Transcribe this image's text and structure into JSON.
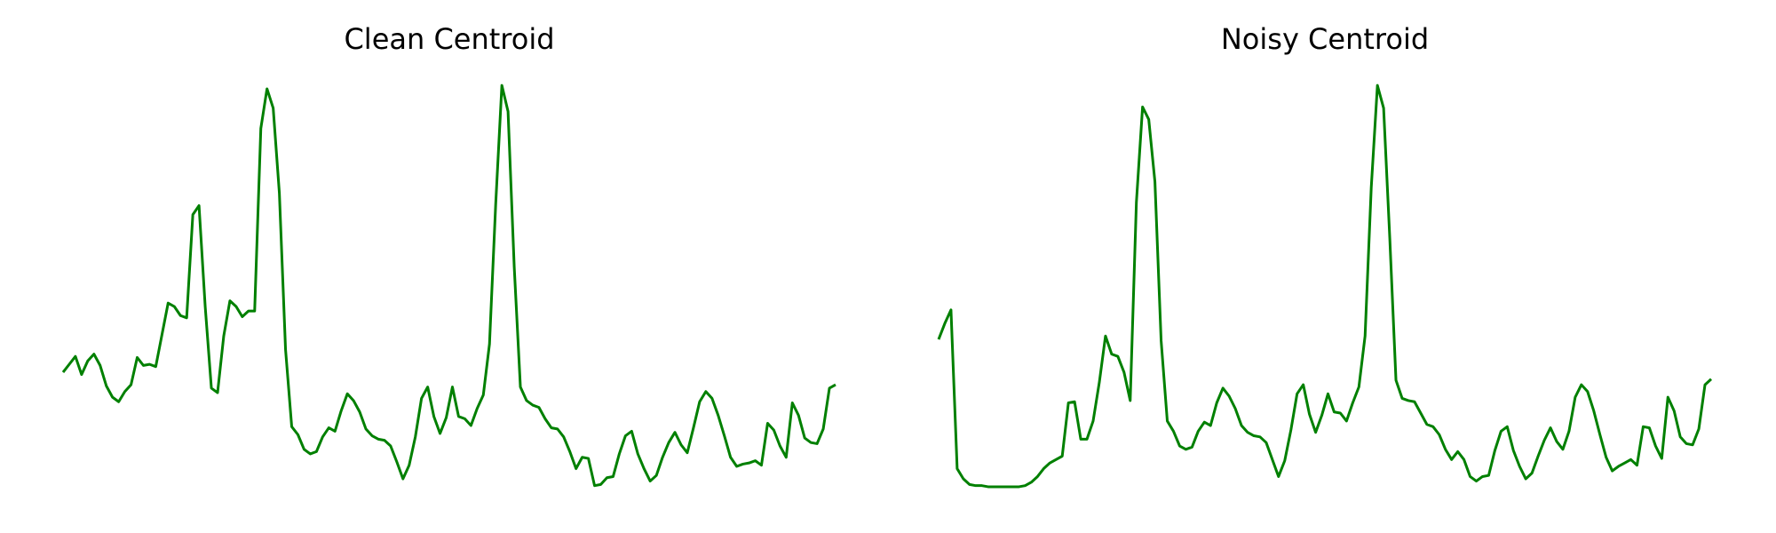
{
  "chart_data": [
    {
      "type": "line",
      "title": "Clean Centroid",
      "color": "#008000",
      "ylim": [
        0,
        380
      ],
      "values": [
        112,
        119,
        126,
        110,
        122,
        128,
        118,
        100,
        90,
        86,
        95,
        101,
        125,
        118,
        119,
        117,
        145,
        173,
        170,
        162,
        160,
        251,
        259,
        170,
        98,
        94,
        144,
        175,
        170,
        161,
        166,
        166,
        327,
        362,
        345,
        270,
        132,
        64,
        57,
        44,
        40,
        42,
        55,
        63,
        60,
        78,
        93,
        87,
        77,
        62,
        56,
        53,
        52,
        47,
        33,
        18,
        30,
        55,
        89,
        99,
        73,
        58,
        72,
        99,
        73,
        71,
        65,
        80,
        92,
        137,
        260,
        365,
        342,
        205,
        99,
        87,
        83,
        81,
        71,
        63,
        62,
        55,
        42,
        27,
        37,
        36,
        12,
        13,
        19,
        20,
        40,
        56,
        60,
        40,
        27,
        16,
        21,
        37,
        50,
        59,
        48,
        41,
        63,
        86,
        95,
        89,
        74,
        56,
        37,
        29,
        31,
        32,
        34,
        30,
        67,
        61,
        47,
        37,
        85,
        74,
        54,
        50,
        49,
        62,
        98,
        101
      ]
    },
    {
      "type": "line",
      "title": "Noisy Centroid",
      "color": "#008000",
      "ylim": [
        0,
        380
      ],
      "values": [
        141,
        155,
        167,
        27,
        18,
        13,
        12,
        12,
        11,
        11,
        11,
        11,
        11,
        11,
        12,
        15,
        20,
        27,
        32,
        35,
        38,
        85,
        86,
        53,
        53,
        69,
        103,
        144,
        128,
        126,
        112,
        87,
        262,
        346,
        335,
        280,
        140,
        69,
        60,
        47,
        44,
        46,
        60,
        68,
        65,
        85,
        98,
        91,
        80,
        65,
        59,
        56,
        55,
        50,
        35,
        20,
        34,
        61,
        93,
        101,
        75,
        59,
        74,
        93,
        77,
        76,
        69,
        85,
        99,
        144,
        275,
        365,
        345,
        230,
        105,
        89,
        87,
        86,
        76,
        66,
        64,
        57,
        44,
        35,
        42,
        35,
        20,
        16,
        20,
        21,
        43,
        60,
        64,
        43,
        29,
        18,
        23,
        38,
        52,
        63,
        51,
        44,
        60,
        90,
        101,
        95,
        78,
        57,
        37,
        25,
        29,
        32,
        35,
        30,
        64,
        63,
        47,
        36,
        90,
        78,
        55,
        49,
        48,
        62,
        101,
        106
      ]
    }
  ]
}
